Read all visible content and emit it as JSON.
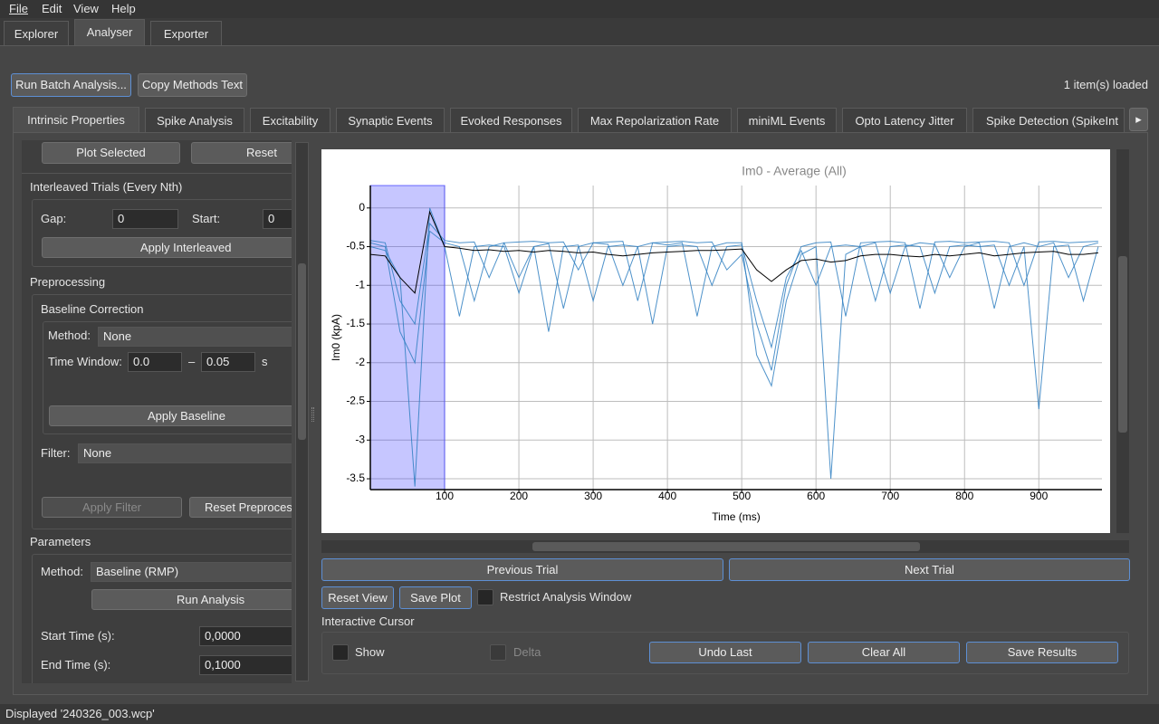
{
  "menu": [
    "File",
    "Edit",
    "View",
    "Help"
  ],
  "main_tabs": [
    "Explorer",
    "Analyser",
    "Exporter"
  ],
  "toolbar": {
    "run_batch": "Run Batch Analysis...",
    "copy_methods": "Copy Methods Text",
    "status": "1 item(s) loaded"
  },
  "analysis_tabs": [
    "Intrinsic Properties",
    "Spike Analysis",
    "Excitability",
    "Synaptic Events",
    "Evoked Responses",
    "Max Repolarization Rate",
    "miniML Events",
    "Opto Latency Jitter",
    "Spike Detection (SpikeInt"
  ],
  "left_panel": {
    "plot_selected": "Plot Selected",
    "reset": "Reset",
    "interleaved": {
      "title": "Interleaved Trials (Every Nth)",
      "gap_label": "Gap:",
      "gap_value": "0",
      "start_label": "Start:",
      "start_value": "0",
      "apply": "Apply Interleaved"
    },
    "preprocessing": {
      "title": "Preprocessing",
      "baseline_title": "Baseline Correction",
      "method_label": "Method:",
      "method_value": "None",
      "time_window_label": "Time Window:",
      "tw_start": "0.0",
      "tw_sep": "–",
      "tw_end": "0.05",
      "tw_unit": "s",
      "apply_baseline": "Apply Baseline",
      "filter_label": "Filter:",
      "filter_value": "None",
      "apply_filter": "Apply Filter",
      "reset_preprocess": "Reset Preproces"
    },
    "parameters": {
      "title": "Parameters",
      "method_label": "Method:",
      "method_value": "Baseline (RMP)",
      "run": "Run Analysis",
      "start_label": "Start Time (s):",
      "start_value": "0,0000",
      "end_label": "End Time (s):",
      "end_value": "0,1000"
    }
  },
  "chart_data": {
    "type": "line",
    "title": "Im0 - Average (All)",
    "x_label": "Time (ms)",
    "y_label": "Im0 (kpA)",
    "xlim": [
      0,
      985
    ],
    "ylim": [
      -3.64,
      0.29
    ],
    "xticks": [
      100,
      200,
      300,
      400,
      500,
      600,
      700,
      800,
      900
    ],
    "yticks": [
      0,
      -0.5,
      -1,
      -1.5,
      -2,
      -2.5,
      -3,
      -3.5
    ],
    "grid": true,
    "region": [
      0,
      100
    ],
    "region_color": "#3333ff",
    "x": [
      0,
      20,
      40,
      60,
      80,
      100,
      120,
      140,
      160,
      180,
      200,
      220,
      240,
      260,
      280,
      300,
      320,
      340,
      360,
      380,
      400,
      420,
      440,
      460,
      480,
      500,
      520,
      540,
      560,
      580,
      600,
      620,
      640,
      660,
      680,
      700,
      720,
      740,
      760,
      780,
      800,
      820,
      840,
      860,
      880,
      900,
      920,
      940,
      960,
      980
    ],
    "series": [
      {
        "color": "#2f7fc1",
        "values": [
          -0.45,
          -0.5,
          -1.6,
          -2.0,
          -0.3,
          -0.45,
          -0.5,
          -1.2,
          -0.5,
          -0.45,
          -0.9,
          -0.5,
          -0.46,
          -1.3,
          -0.5,
          -0.45,
          -0.47,
          -1.0,
          -0.5,
          -0.45,
          -0.48,
          -0.45,
          -1.4,
          -0.5,
          -0.45,
          -0.45,
          -1.9,
          -2.3,
          -1.2,
          -0.6,
          -0.5,
          -3.5,
          -0.6,
          -0.5,
          -0.45,
          -1.1,
          -0.5,
          -0.45,
          -0.47,
          -0.9,
          -0.5,
          -0.45,
          -1.3,
          -0.5,
          -0.45,
          -0.5,
          -0.45,
          -0.9,
          -0.5,
          -0.45
        ]
      },
      {
        "color": "#2f7fc1",
        "values": [
          -0.5,
          -0.55,
          -0.9,
          -3.6,
          0.0,
          -0.5,
          -1.4,
          -0.5,
          -0.48,
          -0.5,
          -1.1,
          -0.5,
          -1.6,
          -0.5,
          -0.48,
          -1.2,
          -0.5,
          -0.48,
          -0.5,
          -1.5,
          -0.5,
          -0.48,
          -0.5,
          -1.0,
          -0.5,
          -0.48,
          -1.2,
          -1.8,
          -0.9,
          -0.55,
          -1.0,
          -0.5,
          -0.48,
          -0.5,
          -1.2,
          -0.5,
          -0.48,
          -0.5,
          -1.1,
          -0.5,
          -0.48,
          -0.5,
          -0.48,
          -1.0,
          -0.5,
          -2.6,
          -0.5,
          -0.48,
          -1.2,
          -0.5
        ]
      },
      {
        "color": "#2f7fc1",
        "values": [
          -0.42,
          -0.45,
          -1.2,
          -1.5,
          -0.2,
          -0.42,
          -0.45,
          -0.44,
          -0.9,
          -0.45,
          -0.44,
          -0.43,
          -0.45,
          -0.44,
          -0.8,
          -0.45,
          -0.44,
          -0.43,
          -1.2,
          -0.45,
          -0.44,
          -0.43,
          -0.45,
          -0.44,
          -0.8,
          -0.6,
          -1.5,
          -2.1,
          -1.0,
          -0.5,
          -0.45,
          -0.44,
          -1.4,
          -0.45,
          -0.44,
          -0.43,
          -0.45,
          -1.3,
          -0.44,
          -0.43,
          -0.45,
          -0.44,
          -0.43,
          -0.45,
          -1.0,
          -0.44,
          -0.43,
          -0.45,
          -0.44,
          -0.43
        ]
      },
      {
        "color": "#000000",
        "values": [
          -0.6,
          -0.62,
          -0.9,
          -1.1,
          -0.05,
          -0.5,
          -0.52,
          -0.55,
          -0.54,
          -0.56,
          -0.55,
          -0.57,
          -0.55,
          -0.56,
          -0.58,
          -0.57,
          -0.6,
          -0.62,
          -0.6,
          -0.58,
          -0.57,
          -0.56,
          -0.55,
          -0.55,
          -0.54,
          -0.53,
          -0.8,
          -0.95,
          -0.8,
          -0.68,
          -0.66,
          -0.7,
          -0.68,
          -0.62,
          -0.6,
          -0.6,
          -0.62,
          -0.63,
          -0.6,
          -0.62,
          -0.6,
          -0.58,
          -0.62,
          -0.6,
          -0.58,
          -0.57,
          -0.56,
          -0.6,
          -0.6,
          -0.58
        ]
      }
    ]
  },
  "navigation": {
    "previous": "Previous Trial",
    "next": "Next Trial",
    "reset_view": "Reset View",
    "save_plot": "Save Plot",
    "restrict": "Restrict Analysis Window"
  },
  "cursor": {
    "title": "Interactive Cursor",
    "show": "Show",
    "delta": "Delta",
    "undo": "Undo Last",
    "clear": "Clear All",
    "save": "Save Results"
  },
  "status_bar": "Displayed '240326_003.wcp'"
}
